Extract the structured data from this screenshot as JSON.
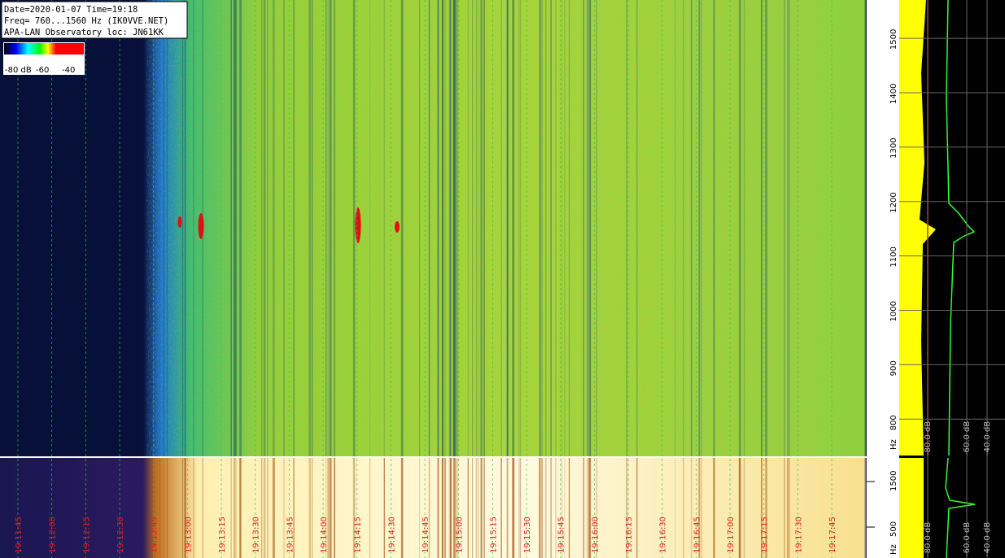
{
  "header": {
    "lines": [
      "Date=2020-01-07 Time=19:18",
      "Freq= 760...1560 Hz (IK0VVE.NET)",
      "APA-LAN Observatory loc: JN61KK"
    ]
  },
  "colorbar": {
    "labels": [
      "-80 dB",
      "-60",
      "-40"
    ]
  },
  "frequency_axis": {
    "range": [
      760,
      1560
    ],
    "ticks": [
      800,
      900,
      1000,
      1100,
      1200,
      1300,
      1400,
      1500
    ],
    "unit": "Hz"
  },
  "overview_axis": {
    "ticks": [
      500,
      1500
    ],
    "unit": "Hz"
  },
  "time_axis": {
    "labels": [
      "19:11:45",
      "19:12:00",
      "19:12:15",
      "19:12:30",
      "19:12:45",
      "19:13:00",
      "19:13:15",
      "19:13:30",
      "19:13:45",
      "19:14:00",
      "19:14:15",
      "19:14:30",
      "19:14:45",
      "19:15:00",
      "19:15:15",
      "19:15:30",
      "19:15:45",
      "19:16:00",
      "19:16:15",
      "19:16:30",
      "19:16:45",
      "19:17:00",
      "19:17:15",
      "19:17:30",
      "19:17:45"
    ]
  },
  "spectrum_axis": {
    "labels": [
      "-80.0 dB",
      "-60.0 dB",
      "-40.0 dB"
    ]
  }
}
